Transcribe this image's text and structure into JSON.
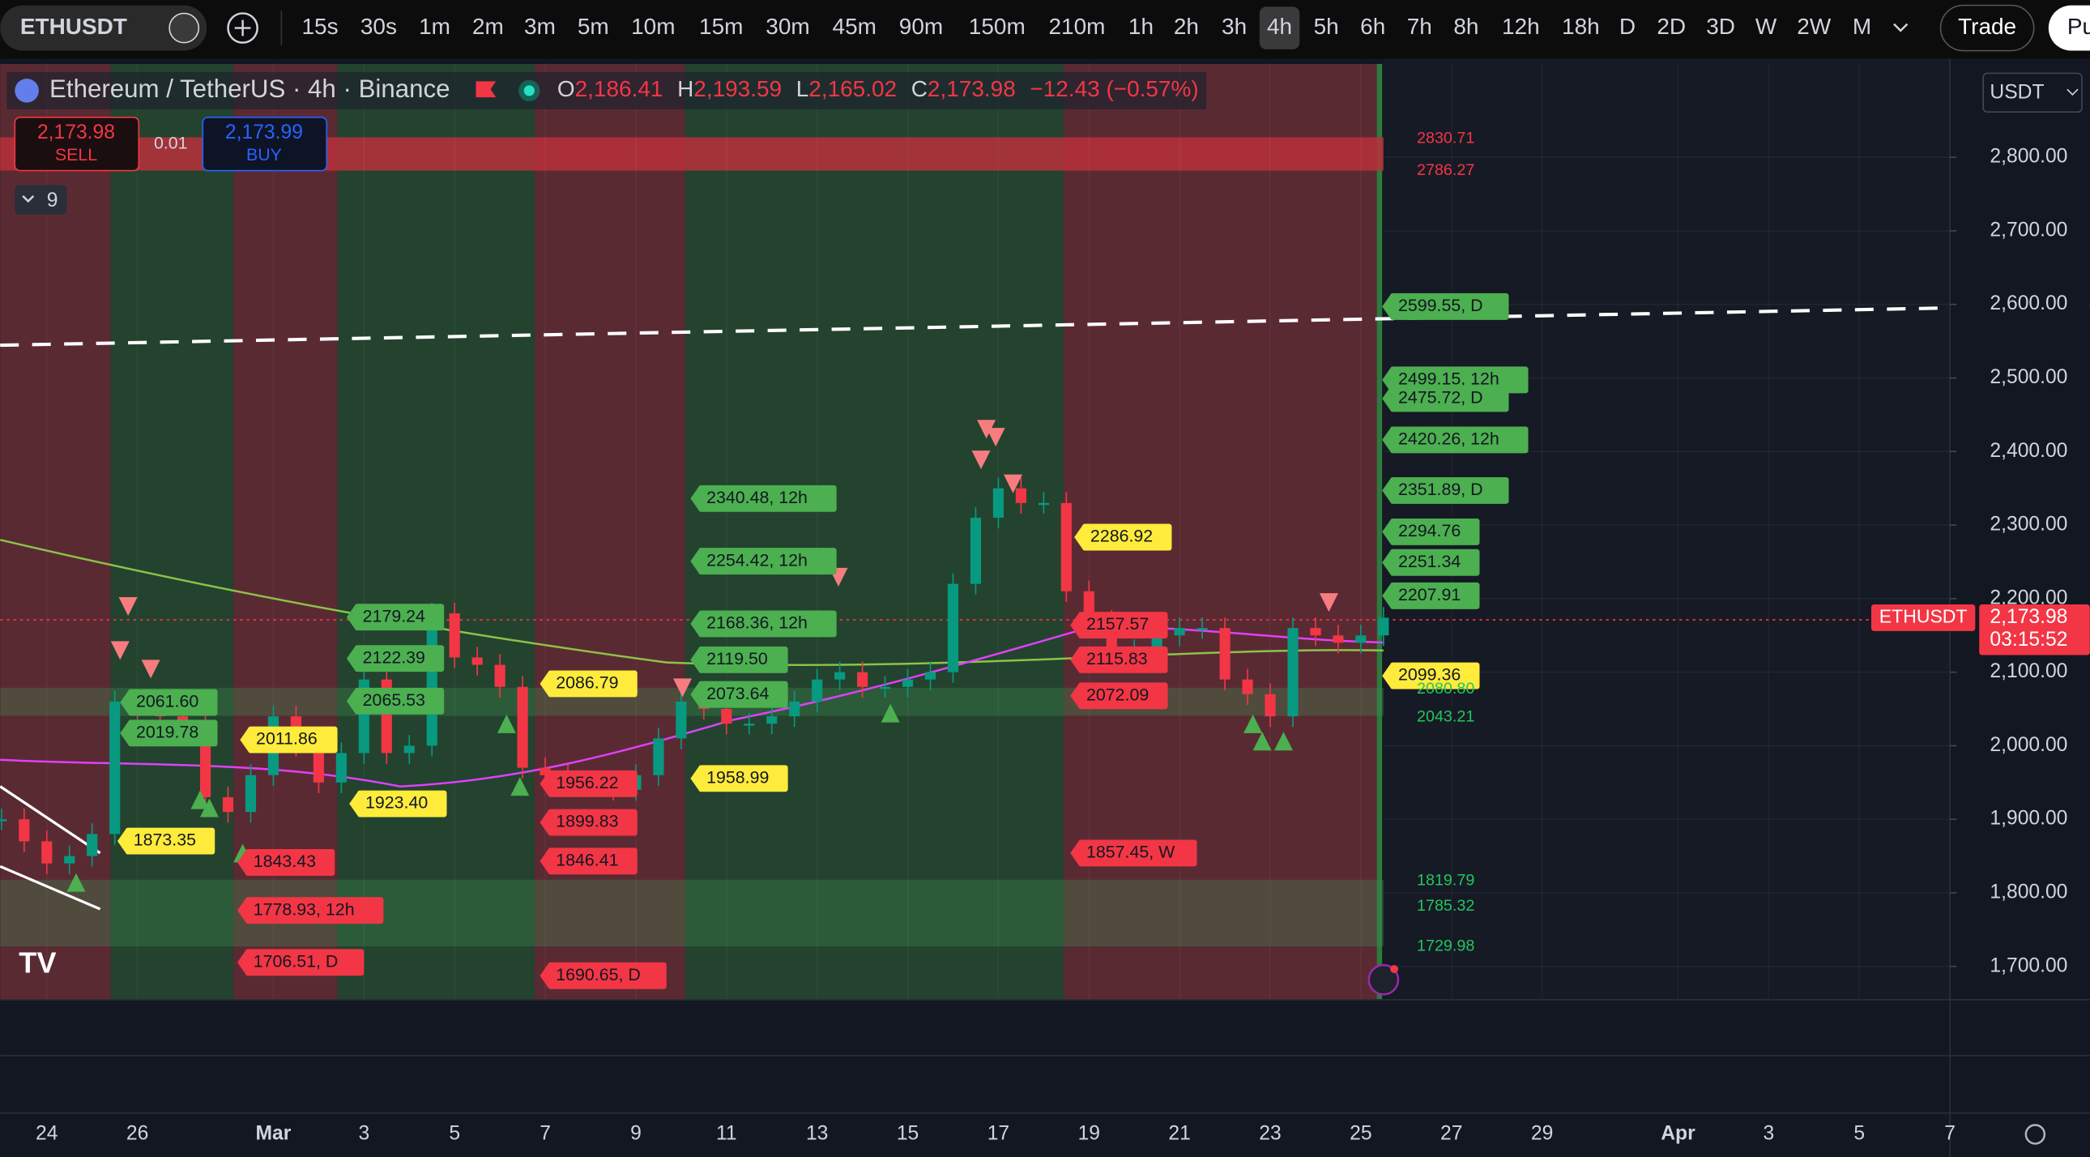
{
  "toolbar": {
    "symbol": "ETHUSDT",
    "intervals": [
      "15s",
      "30s",
      "1m",
      "2m",
      "3m",
      "5m",
      "10m",
      "15m",
      "30m",
      "45m",
      "90m",
      "150m",
      "210m",
      "1h",
      "2h",
      "3h",
      "4h",
      "5h",
      "6h",
      "7h",
      "8h",
      "12h",
      "18h",
      "D",
      "2D",
      "3D",
      "W",
      "2W",
      "M"
    ],
    "active_interval_index": 16,
    "trade_button": "Trade",
    "profile_button": "Pu"
  },
  "legend": {
    "title": "Ethereum / TetherUS · 4h · Binance",
    "open_label": "O",
    "open": "2,186.41",
    "high_label": "H",
    "high": "2,193.59",
    "low_label": "L",
    "low": "2,165.02",
    "close_label": "C",
    "close": "2,173.98",
    "change": "−12.43 (−0.57%)"
  },
  "order_panel": {
    "sell_price": "2,173.98",
    "sell_label": "SELL",
    "spread": "0.01",
    "buy_price": "2,173.99",
    "buy_label": "BUY"
  },
  "indicators_hidden_count": 9,
  "price_axis": {
    "currency": "USDT",
    "ticks": [
      {
        "value": 2800,
        "label": "2,800.00"
      },
      {
        "value": 2700,
        "label": "2,700.00"
      },
      {
        "value": 2600,
        "label": "2,600.00"
      },
      {
        "value": 2500,
        "label": "2,500.00"
      },
      {
        "value": 2400,
        "label": "2,400.00"
      },
      {
        "value": 2300,
        "label": "2,300.00"
      },
      {
        "value": 2200,
        "label": "2,200.00"
      },
      {
        "value": 2100,
        "label": "2,100.00"
      },
      {
        "value": 2000,
        "label": "2,000.00"
      },
      {
        "value": 1900,
        "label": "1,900.00"
      },
      {
        "value": 1800,
        "label": "1,800.00"
      },
      {
        "value": 1700,
        "label": "1,700.00"
      }
    ],
    "last_price": {
      "symbol": "ETHUSDT",
      "value": 2173.98,
      "label": "2,173.98",
      "countdown": "03:15:52"
    }
  },
  "time_axis": {
    "labels": [
      "24",
      "26",
      "Mar",
      "3",
      "5",
      "7",
      "9",
      "11",
      "13",
      "15",
      "17",
      "19",
      "21",
      "23",
      "25",
      "27",
      "29",
      "Apr",
      "3",
      "5",
      "7"
    ]
  },
  "candles": {
    "closes": [
      1900,
      1870,
      1840,
      1850,
      1880,
      2060,
      2050,
      2040,
      2030,
      1930,
      1910,
      1960,
      2040,
      2000,
      1950,
      1990,
      2090,
      1990,
      2000,
      2180,
      2120,
      2110,
      2080,
      1970,
      1960,
      1950,
      1950,
      1940,
      1960,
      2010,
      2060,
      2050,
      2030,
      2030,
      2040,
      2060,
      2090,
      2100,
      2080,
      2080,
      2090,
      2100,
      2220,
      2310,
      2350,
      2330,
      2330,
      2210,
      2170,
      2120,
      2130,
      2150,
      2160,
      2160,
      2090,
      2070,
      2040,
      2160,
      2150,
      2140,
      2150,
      2174
    ]
  },
  "levels": [
    {
      "text": "2340.48, 12h",
      "style": "green"
    },
    {
      "text": "2254.42, 12h",
      "style": "green"
    },
    {
      "text": "2168.36, 12h",
      "style": "green"
    },
    {
      "text": "2119.50",
      "style": "green"
    },
    {
      "text": "2073.64",
      "style": "green"
    },
    {
      "text": "2179.24",
      "style": "green"
    },
    {
      "text": "2122.39",
      "style": "green"
    },
    {
      "text": "2065.53",
      "style": "green"
    },
    {
      "text": "2061.60",
      "style": "green"
    },
    {
      "text": "2019.78",
      "style": "green"
    },
    {
      "text": "2599.55, D",
      "style": "green"
    },
    {
      "text": "2499.15, 12h",
      "style": "green"
    },
    {
      "text": "2475.72, D",
      "style": "green"
    },
    {
      "text": "2420.26, 12h",
      "style": "green"
    },
    {
      "text": "2351.89, D",
      "style": "green"
    },
    {
      "text": "2294.76",
      "style": "green"
    },
    {
      "text": "2251.34",
      "style": "green"
    },
    {
      "text": "2207.91",
      "style": "green"
    },
    {
      "text": "2086.79",
      "style": "yellow"
    },
    {
      "text": "2011.86",
      "style": "yellow"
    },
    {
      "text": "1923.40",
      "style": "yellow"
    },
    {
      "text": "1873.35",
      "style": "yellow"
    },
    {
      "text": "1958.99",
      "style": "yellow"
    },
    {
      "text": "2286.92",
      "style": "yellow"
    },
    {
      "text": "2099.36",
      "style": "yellow"
    },
    {
      "text": "1843.43",
      "style": "red"
    },
    {
      "text": "1778.93, 12h",
      "style": "red"
    },
    {
      "text": "1706.51, D",
      "style": "red"
    },
    {
      "text": "1956.22",
      "style": "red"
    },
    {
      "text": "1899.83",
      "style": "red"
    },
    {
      "text": "1846.41",
      "style": "red"
    },
    {
      "text": "1690.65, D",
      "style": "red"
    },
    {
      "text": "2157.57",
      "style": "red"
    },
    {
      "text": "2115.83",
      "style": "red"
    },
    {
      "text": "2072.09",
      "style": "red"
    },
    {
      "text": "1857.45, W",
      "style": "red"
    },
    {
      "text": "2830.71",
      "style": "text-red"
    },
    {
      "text": "2786.27",
      "style": "text-red"
    },
    {
      "text": "2080.80",
      "style": "text-green"
    },
    {
      "text": "2043.21",
      "style": "text-green"
    },
    {
      "text": "1819.79",
      "style": "text-green"
    },
    {
      "text": "1785.32",
      "style": "text-green"
    },
    {
      "text": "1729.98",
      "style": "text-green"
    }
  ]
}
